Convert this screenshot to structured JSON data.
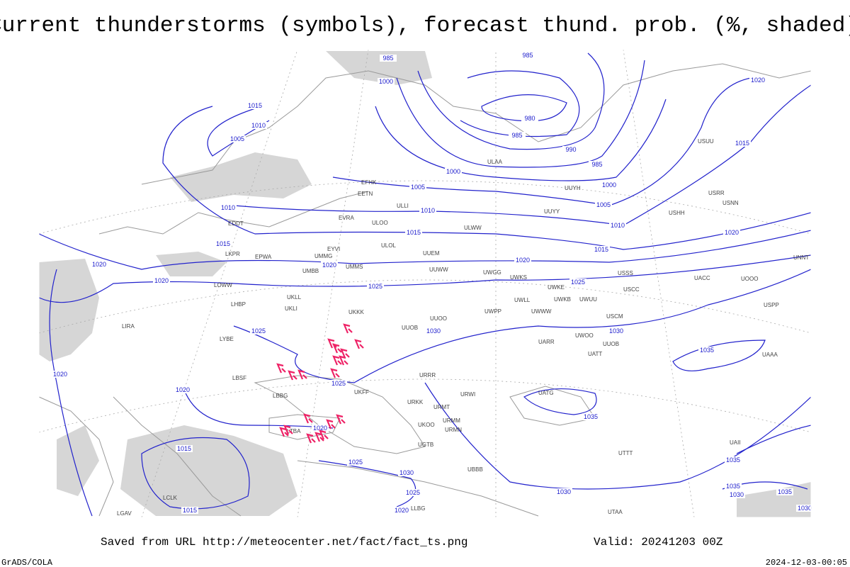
{
  "title": "Current thunderstorms (symbols), forecast thund. prob. (%, shaded)",
  "footer": {
    "source": "Saved from URL http://meteocenter.net/fact/fact_ts.png",
    "valid": "Valid: 20241203 00Z",
    "software": "GrADS/COLA",
    "timestamp": "2024-12-03-00:05"
  },
  "map": {
    "isobar_labels": [
      985,
      1000,
      985,
      980,
      985,
      990,
      985,
      1000,
      1005,
      1010,
      1015,
      1020,
      1015,
      1020,
      1015,
      1010,
      1005,
      1010,
      1015,
      1020,
      1020,
      1000,
      1005,
      1010,
      1015,
      1020,
      1020,
      1025,
      1025,
      1030,
      1030,
      1035,
      1025,
      1025,
      1020,
      1020,
      1035,
      1020,
      1015,
      1015,
      1025,
      1030,
      1025,
      1020,
      1030,
      1035,
      1035,
      1030,
      1035,
      1030
    ],
    "station_labels": [
      "ULAA",
      "UUYH",
      "UUYY",
      "ULWW",
      "ULOL",
      "UUEM",
      "UUWW",
      "UWGG",
      "UWKS",
      "UWKE",
      "UWKB",
      "UWUU",
      "UWLL",
      "UWWW",
      "UWPP",
      "UUOO",
      "UUOB",
      "UKKK",
      "UKLL",
      "UKLI",
      "UMMS",
      "UMMG",
      "UMBB",
      "EYVI",
      "EPWA",
      "EVRA",
      "EETN",
      "EFHK",
      "ULLI",
      "ULOO",
      "EDDT",
      "LKPR",
      "LHBP",
      "LOWW",
      "LIRA",
      "LYBE",
      "LBSF",
      "LBBG",
      "UKOO",
      "UKFF",
      "URKK",
      "URRR",
      "URWI",
      "URMT",
      "URMM",
      "URMN",
      "UGTB",
      "UBBB",
      "UATG",
      "UATT",
      "UARR",
      "UWOO",
      "UUOB",
      "USSS",
      "USCC",
      "USCM",
      "UACC",
      "UAAA",
      "UAII",
      "UTTT",
      "UTAA",
      "USRR",
      "USNN",
      "USHH",
      "USUU",
      "UOOO",
      "USPP",
      "UNNT",
      "LGAV",
      "LTBA",
      "LLBG",
      "LCLK"
    ]
  }
}
